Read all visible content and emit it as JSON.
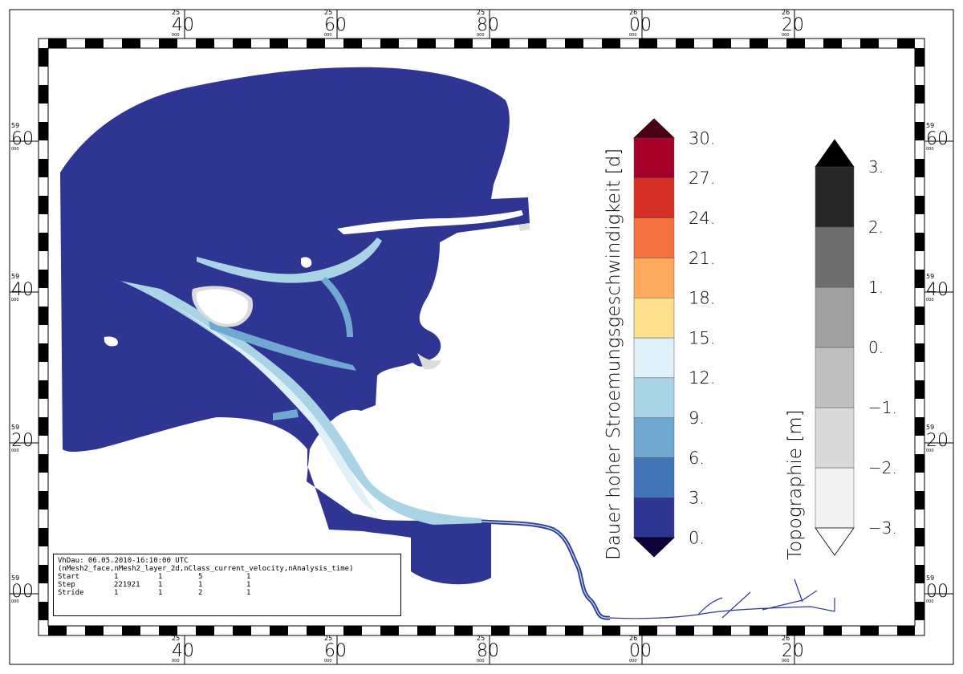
{
  "map": {
    "x_ticks": [
      {
        "sup": "25",
        "main": "40",
        "sub": "000"
      },
      {
        "sup": "25",
        "main": "60",
        "sub": "000"
      },
      {
        "sup": "25",
        "main": "80",
        "sub": "000"
      },
      {
        "sup": "26",
        "main": "00",
        "sub": "000"
      },
      {
        "sup": "26",
        "main": "20",
        "sub": "000"
      }
    ],
    "y_ticks": [
      {
        "sup": "59",
        "main": "60",
        "sub": "000"
      },
      {
        "sup": "59",
        "main": "40",
        "sub": "000"
      },
      {
        "sup": "59",
        "main": "20",
        "sub": "000"
      },
      {
        "sup": "59",
        "main": "00",
        "sub": "000"
      }
    ],
    "colors": {
      "water_deep": "#2e3592",
      "water_light": "#a8d4e6",
      "water_lightest": "#e0f0f8",
      "dry_land": "#dcdcdc",
      "river_line": "#2e3592"
    }
  },
  "legend_velocity": {
    "title": "Dauer hoher Stroemungsgeschwindigkeit [d]",
    "labels": [
      "0.",
      "3.",
      "6.",
      "9.",
      "12.",
      "15.",
      "18.",
      "21.",
      "24.",
      "27.",
      "30."
    ],
    "colors": [
      "#2e3592",
      "#4376b7",
      "#6fa8d0",
      "#a8d4e6",
      "#e0f0f8",
      "#fde08c",
      "#fdaa5e",
      "#f4703f",
      "#d73027",
      "#a5002a"
    ],
    "under_color": "#10003a",
    "over_color": "#4a0010"
  },
  "legend_topo": {
    "title": "Topographie [m]",
    "labels": [
      "−3.",
      "−2.",
      "−1.",
      "0.",
      "1.",
      "2.",
      "3."
    ],
    "colors": [
      "#f2f2f2",
      "#d9d9d9",
      "#c0c0c0",
      "#a0a0a0",
      "#6e6e6e",
      "#262626"
    ],
    "under_color": "#ffffff",
    "over_color": "#000000"
  },
  "info": {
    "title": "VhDau: 06.05.2010-16:10:00 UTC",
    "dims": "(nMesh2_face,nMesh2_layer_2d,nClass_current_velocity,nAnalysis_time)",
    "rows": [
      {
        "label": "Start",
        "v1": "1",
        "v2": "1",
        "v3": "5",
        "v4": "1"
      },
      {
        "label": "Step",
        "v1": "221921",
        "v2": "1",
        "v3": "1",
        "v4": "1"
      },
      {
        "label": "Stride",
        "v1": "1",
        "v2": "1",
        "v3": "2",
        "v4": "1"
      }
    ]
  }
}
